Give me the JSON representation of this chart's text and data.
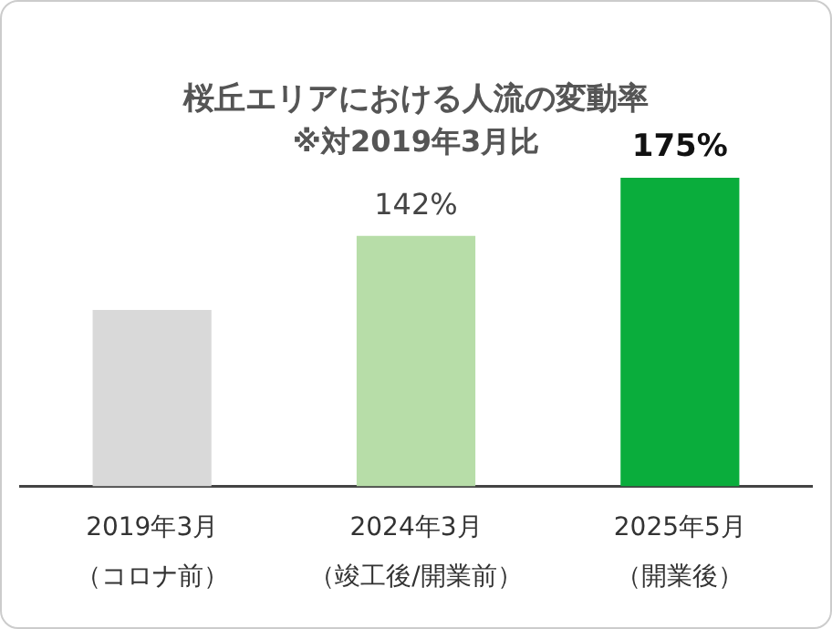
{
  "chart_data": {
    "type": "bar",
    "title": "桜丘エリアにおける人流の変動率",
    "subtitle": "※対2019年3月比",
    "categories": [
      "2019年3月（コロナ前）",
      "2024年3月（竣工後/開業前）",
      "2025年5月（開業後）"
    ],
    "values": [
      100,
      142,
      175
    ],
    "colors": [
      "#d9d9d9",
      "#b7dda8",
      "#0aad3c"
    ],
    "value_labels": [
      null,
      "142%",
      "175%"
    ],
    "grid": false,
    "legend": false
  }
}
